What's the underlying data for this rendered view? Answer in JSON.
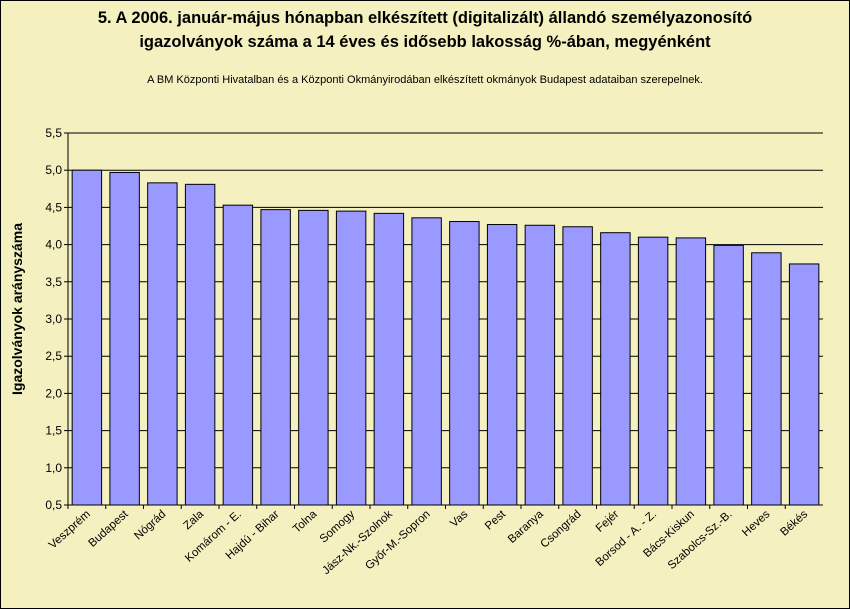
{
  "chart_data": {
    "type": "bar",
    "title_line1": "5. A 2006. január-május hónapban elkészített (digitalizált) állandó személyazonosító",
    "title_line2": "igazolványok száma a 14 éves és idősebb lakosság %-ában, megyénként",
    "subtitle": "A BM Központi Hivatalban és a Központi Okmányirodában elkészített  okmányok Budapest adataiban szerepelnek.",
    "xlabel": "",
    "ylabel": "Igazolványok arányszáma",
    "ylim": [
      0.5,
      5.5
    ],
    "yticks": [
      "0,5",
      "1,0",
      "1,5",
      "2,0",
      "2,5",
      "3,0",
      "3,5",
      "4,0",
      "4,5",
      "5,0",
      "5,5"
    ],
    "grid": true,
    "bar_color": "#9999ff",
    "categories": [
      "Veszprém",
      "Budapest",
      "Nógrád",
      "Zala",
      "Komárom - E.",
      "Hajdú - Bihar",
      "Tolna",
      "Somogy",
      "Jász-Nk.-Szolnok",
      "Győr-M.-Sopron",
      "Vas",
      "Pest",
      "Baranya",
      "Csongrád",
      "Fejér",
      "Borsod - A. - Z.",
      "Bács-Kiskun",
      "Szabolcs-Sz.-B.",
      "Heves",
      "Békés"
    ],
    "values": [
      5.0,
      4.97,
      4.83,
      4.81,
      4.53,
      4.47,
      4.46,
      4.45,
      4.42,
      4.36,
      4.31,
      4.27,
      4.26,
      4.24,
      4.16,
      4.1,
      4.09,
      3.99,
      3.89,
      3.74
    ]
  }
}
